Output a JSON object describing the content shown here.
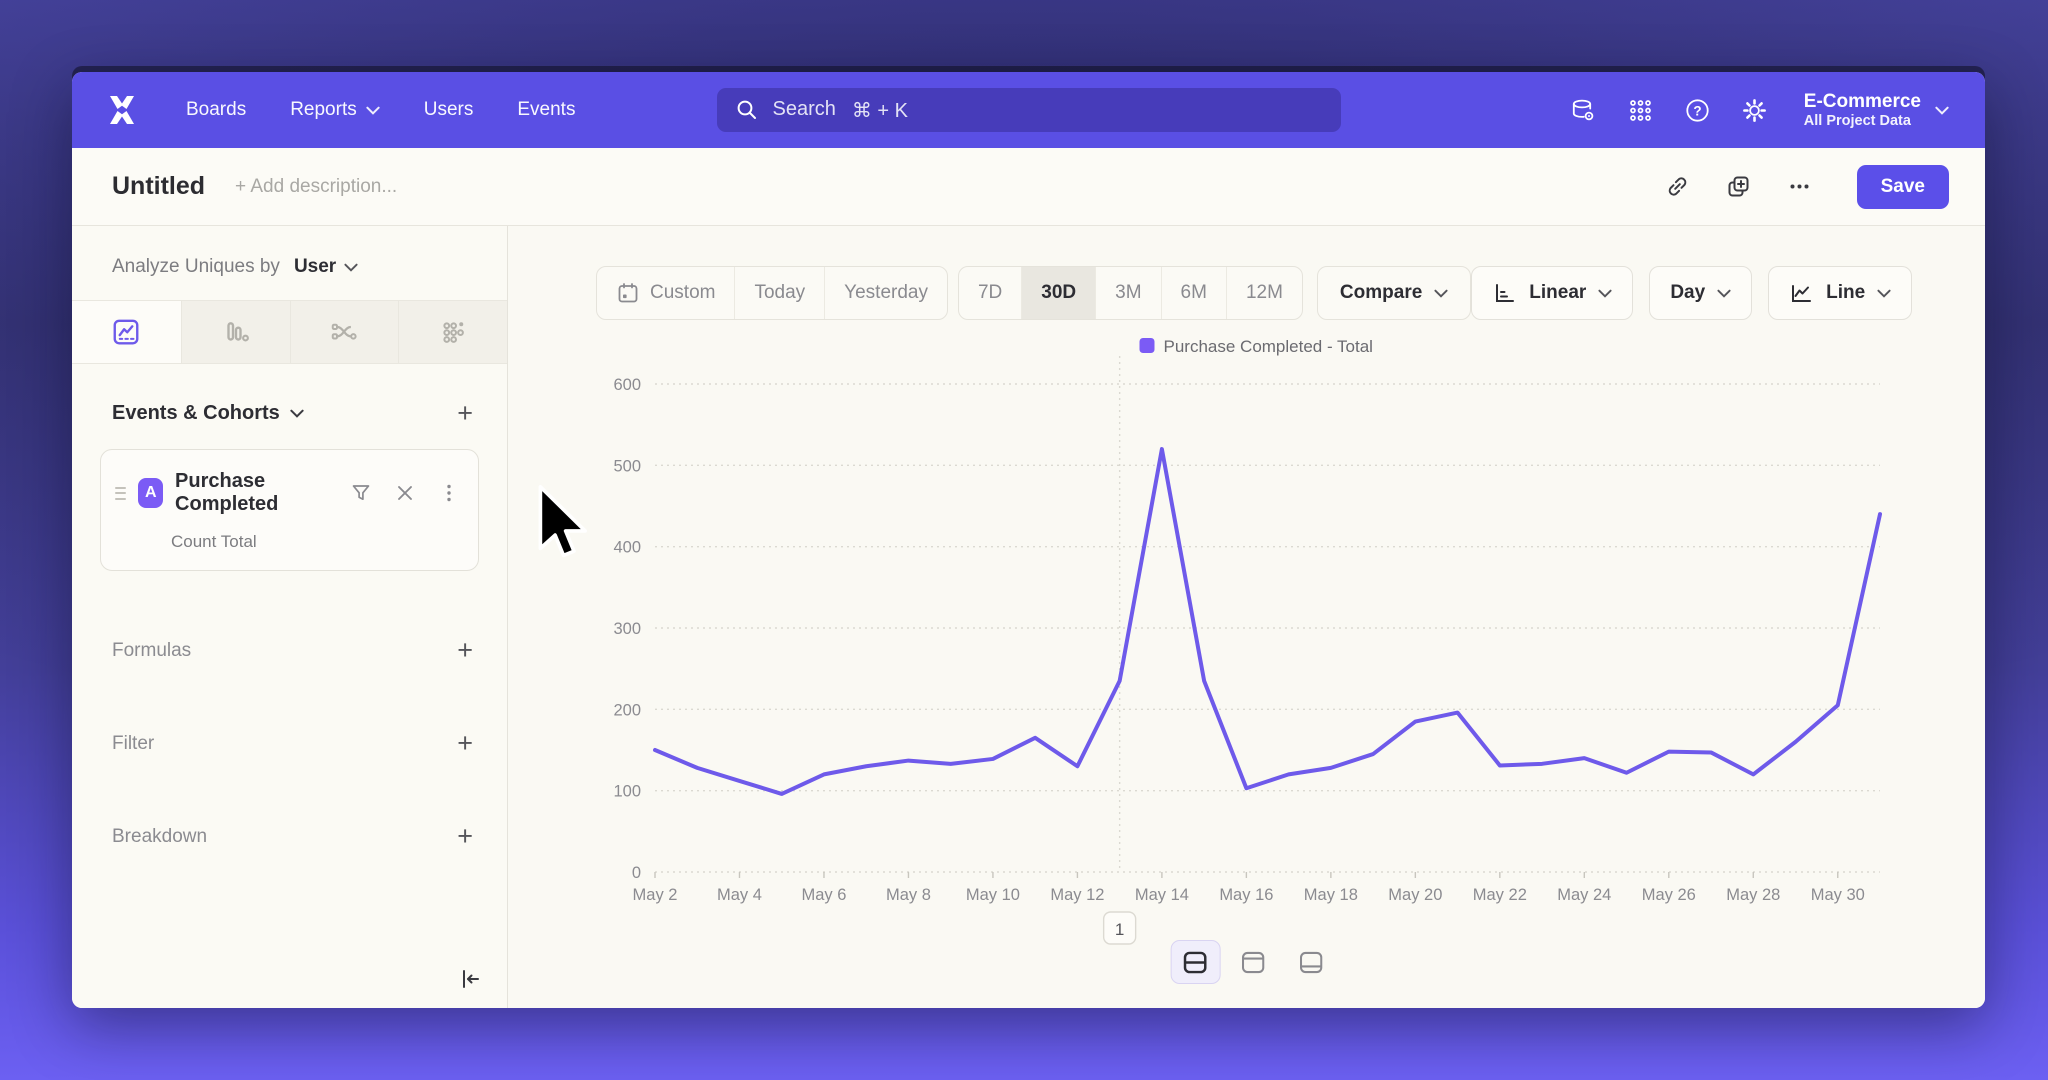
{
  "colors": {
    "accent": "#5b4fe9",
    "nav_bg": "#5a4fe4",
    "line": "#6e5aea",
    "legend_swatch": "#7b5bf5"
  },
  "nav": {
    "items": [
      {
        "label": "Boards",
        "chevron": false
      },
      {
        "label": "Reports",
        "chevron": true
      },
      {
        "label": "Users",
        "chevron": false
      },
      {
        "label": "Events",
        "chevron": false
      }
    ],
    "search_label": "Search",
    "search_shortcut": "⌘ + K",
    "project_name": "E-Commerce",
    "project_subtitle": "All Project Data"
  },
  "header": {
    "title": "Untitled",
    "description_placeholder": "+ Add description...",
    "save_label": "Save"
  },
  "sidebar": {
    "analyze_prefix": "Analyze Uniques by",
    "analyze_value": "User",
    "events_title": "Events & Cohorts",
    "add_label": "+",
    "event_card": {
      "badge": "A",
      "name": "Purchase Completed",
      "metric": "Count Total"
    },
    "sections": [
      "Formulas",
      "Filter",
      "Breakdown"
    ]
  },
  "toolbar": {
    "date_groups": [
      [
        "Custom",
        "Today",
        "Yesterday"
      ],
      [
        "7D",
        "30D",
        "3M",
        "6M",
        "12M"
      ]
    ],
    "active_range": "30D",
    "compare_label": "Compare",
    "scale_label": "Linear",
    "interval_label": "Day",
    "chart_type_label": "Line"
  },
  "chart_data": {
    "type": "line",
    "legend": "Purchase Completed - Total",
    "categories": [
      "May 2",
      "May 3",
      "May 4",
      "May 5",
      "May 6",
      "May 7",
      "May 8",
      "May 9",
      "May 10",
      "May 11",
      "May 12",
      "May 13",
      "May 14",
      "May 15",
      "May 16",
      "May 17",
      "May 18",
      "May 19",
      "May 20",
      "May 21",
      "May 22",
      "May 23",
      "May 24",
      "May 25",
      "May 26",
      "May 27",
      "May 28",
      "May 29",
      "May 30",
      "May 31"
    ],
    "values": [
      150,
      128,
      112,
      96,
      120,
      130,
      137,
      133,
      139,
      165,
      130,
      235,
      520,
      235,
      103,
      120,
      128,
      145,
      185,
      196,
      131,
      133,
      140,
      122,
      148,
      147,
      120,
      160,
      205,
      440
    ],
    "x_label_every": 2,
    "ylim": [
      0,
      600
    ],
    "yticks": [
      0,
      100,
      200,
      300,
      400,
      500,
      600
    ],
    "line_color": "#6e5aea",
    "grid": true,
    "legend_position": "top-center",
    "annotations": [
      {
        "label": "1",
        "category": "May 13"
      }
    ]
  }
}
